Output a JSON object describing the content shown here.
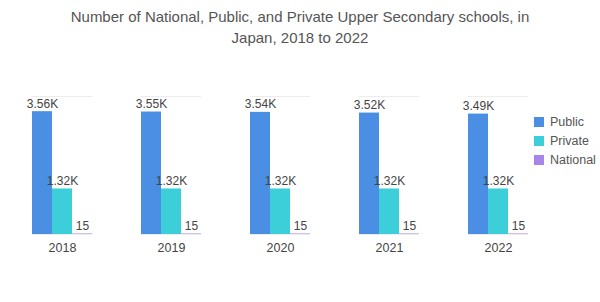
{
  "chart_data": {
    "type": "bar",
    "title": "Number of National, Public, and Private Upper Secondary schools, in Japan, 2018 to 2022",
    "categories": [
      "2018",
      "2019",
      "2020",
      "2021",
      "2022"
    ],
    "series": [
      {
        "name": "Public",
        "color": "#4a8fe3",
        "values": [
          3560,
          3550,
          3540,
          3520,
          3490
        ],
        "value_labels": [
          "3.56K",
          "3.55K",
          "3.54K",
          "3.52K",
          "3.49K"
        ]
      },
      {
        "name": "Private",
        "color": "#3ccfd9",
        "values": [
          1320,
          1320,
          1320,
          1320,
          1320
        ],
        "value_labels": [
          "1.32K",
          "1.32K",
          "1.32K",
          "1.32K",
          "1.32K"
        ]
      },
      {
        "name": "National",
        "color": "#a785ea",
        "values": [
          15,
          15,
          15,
          15,
          15
        ]
      }
    ],
    "ylim": [
      0,
      4000
    ],
    "yticks": [],
    "tick_labels": "x",
    "data_labels": true,
    "legend": "right",
    "grid": false
  }
}
